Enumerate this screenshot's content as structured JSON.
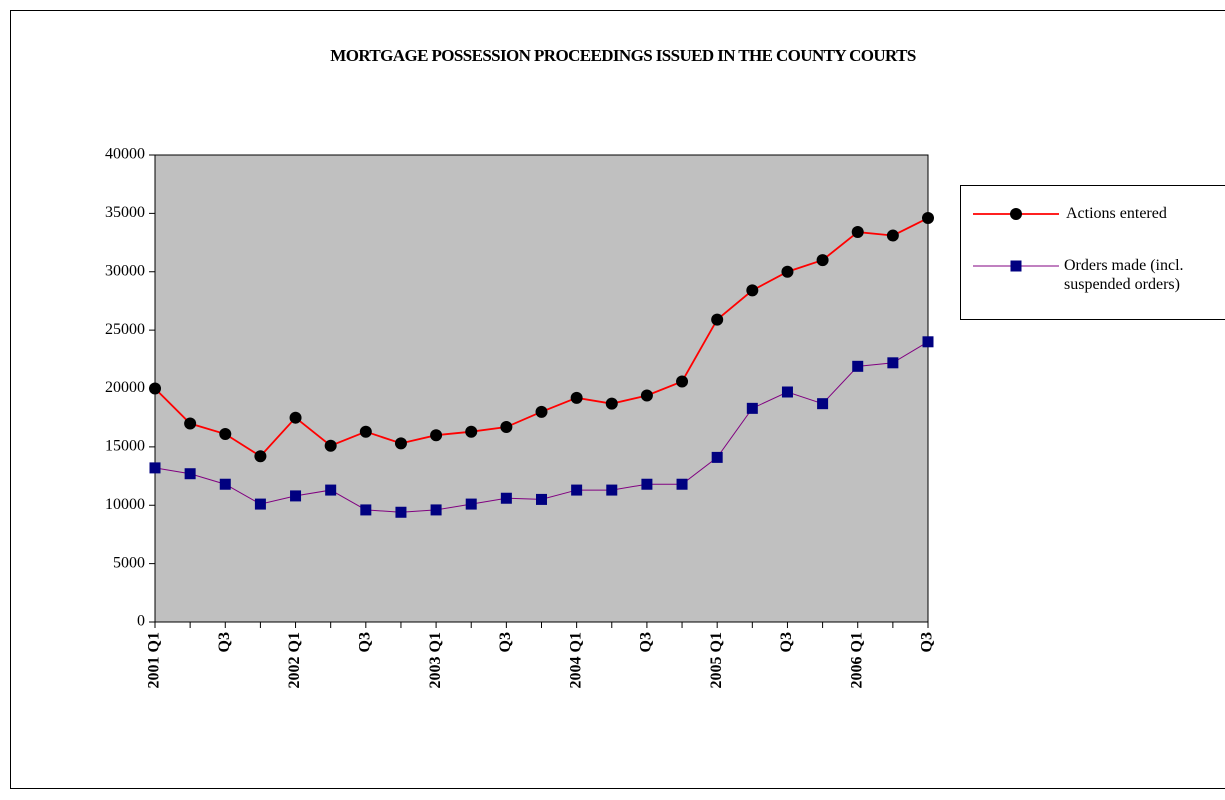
{
  "chart_data": {
    "type": "line",
    "title": "MORTGAGE POSSESSION PROCEEDINGS ISSUED IN THE COUNTY COURTS",
    "categories": [
      "2001 Q1",
      null,
      "Q3",
      null,
      "2002 Q1",
      null,
      "Q3",
      null,
      "2003 Q1",
      null,
      "Q3",
      null,
      "2004 Q1",
      null,
      "Q3",
      null,
      "2005 Q1",
      null,
      "Q3",
      null,
      "2006 Q1",
      null,
      "Q3"
    ],
    "series": [
      {
        "name": "Actions entered",
        "color": "#ff0000",
        "marker_color": "#000000",
        "marker": "circle",
        "values": [
          20000,
          17000,
          16100,
          14200,
          17500,
          15100,
          16300,
          15300,
          16000,
          16300,
          16700,
          18000,
          19200,
          18700,
          19400,
          20600,
          25900,
          28400,
          30000,
          31000,
          33400,
          33100,
          34600
        ]
      },
      {
        "name": "Orders made (incl. suspended orders)",
        "color": "#800080",
        "marker_color": "#000080",
        "marker": "square",
        "values": [
          13200,
          12700,
          11800,
          10100,
          10800,
          11300,
          9600,
          9400,
          9600,
          10100,
          10600,
          10500,
          11300,
          11300,
          11800,
          11800,
          14100,
          18300,
          19700,
          18700,
          21900,
          22200,
          24000
        ]
      }
    ],
    "ylim": [
      0,
      40000
    ],
    "yticks": [
      0,
      5000,
      10000,
      15000,
      20000,
      25000,
      30000,
      35000,
      40000
    ],
    "plot_background": "#c0c0c0",
    "grid": false,
    "legend": "right"
  }
}
